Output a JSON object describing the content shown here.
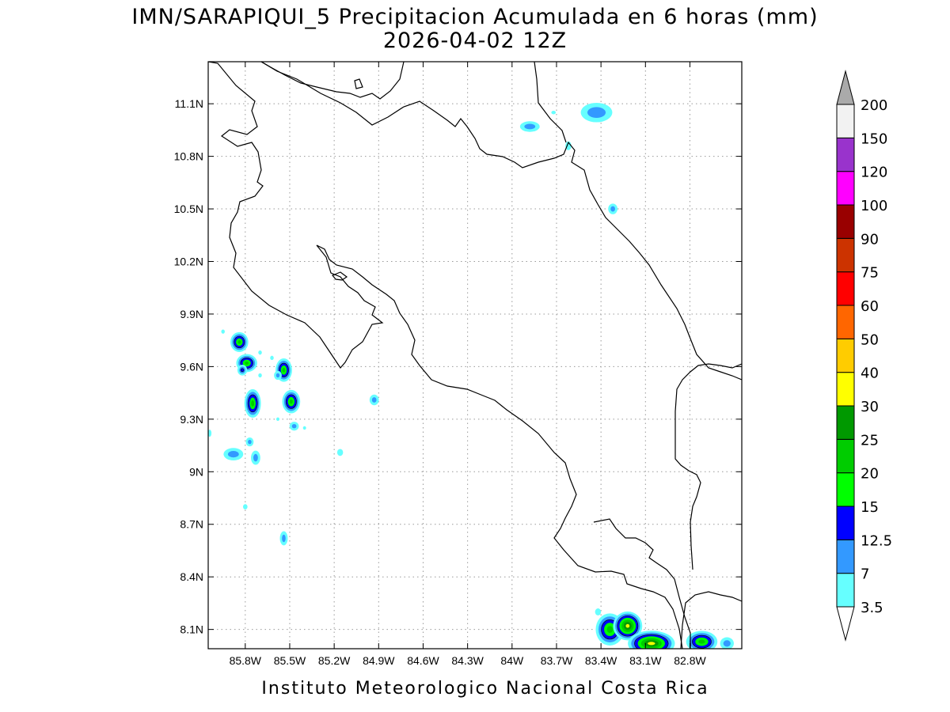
{
  "title": {
    "line1": "IMN/SARAPIQUI_5 Precipitacion Acumulada en 6 horas (mm)",
    "line2": "2026-04-02 12Z"
  },
  "credit": "Instituto Meteorologico Nacional Costa Rica",
  "map": {
    "lon_range": [
      -86.05,
      -82.45
    ],
    "lat_range": [
      7.99,
      11.34
    ],
    "x_ticks": [
      {
        "lon": -85.8,
        "label": "85.8W"
      },
      {
        "lon": -85.5,
        "label": "85.5W"
      },
      {
        "lon": -85.2,
        "label": "85.2W"
      },
      {
        "lon": -84.9,
        "label": "84.9W"
      },
      {
        "lon": -84.6,
        "label": "84.6W"
      },
      {
        "lon": -84.3,
        "label": "84.3W"
      },
      {
        "lon": -84.0,
        "label": "84W"
      },
      {
        "lon": -83.7,
        "label": "83.7W"
      },
      {
        "lon": -83.4,
        "label": "83.4W"
      },
      {
        "lon": -83.1,
        "label": "83.1W"
      },
      {
        "lon": -82.8,
        "label": "82.8W"
      }
    ],
    "y_ticks": [
      {
        "lat": 8.1,
        "label": "8.1N"
      },
      {
        "lat": 8.4,
        "label": "8.4N"
      },
      {
        "lat": 8.7,
        "label": "8.7N"
      },
      {
        "lat": 9.0,
        "label": "9N"
      },
      {
        "lat": 9.3,
        "label": "9.3N"
      },
      {
        "lat": 9.6,
        "label": "9.6N"
      },
      {
        "lat": 9.9,
        "label": "9.9N"
      },
      {
        "lat": 10.2,
        "label": "10.2N"
      },
      {
        "lat": 10.5,
        "label": "10.5N"
      },
      {
        "lat": 10.8,
        "label": "10.8N"
      },
      {
        "lat": 11.1,
        "label": "11.1N"
      }
    ],
    "grid": true,
    "coast_color": "#000000"
  },
  "colorbar": {
    "levels": [
      "3.5",
      "7",
      "12.5",
      "15",
      "20",
      "25",
      "30",
      "40",
      "50",
      "60",
      "75",
      "90",
      "100",
      "120",
      "150",
      "200"
    ],
    "colors": [
      "#ffffff",
      "#66ffff",
      "#3399ff",
      "#0000ff",
      "#00ff00",
      "#00cc00",
      "#009900",
      "#ffff00",
      "#ffcc00",
      "#ff6600",
      "#ff0000",
      "#cc3300",
      "#990000",
      "#ff00ff",
      "#9933cc",
      "#f2f2f2",
      "#aaaaaa"
    ]
  },
  "precip_cells": [
    {
      "lon": -85.84,
      "lat": 9.74,
      "rx": 0.035,
      "ry": 0.035,
      "level": 5
    },
    {
      "lon": -85.79,
      "lat": 9.62,
      "rx": 0.045,
      "ry": 0.03,
      "level": 5
    },
    {
      "lon": -85.82,
      "lat": 9.58,
      "rx": 0.02,
      "ry": 0.02,
      "level": 3
    },
    {
      "lon": -85.75,
      "lat": 9.39,
      "rx": 0.03,
      "ry": 0.06,
      "level": 5
    },
    {
      "lon": -85.54,
      "lat": 9.58,
      "rx": 0.03,
      "ry": 0.045,
      "level": 5
    },
    {
      "lon": -85.49,
      "lat": 9.4,
      "rx": 0.035,
      "ry": 0.045,
      "level": 5
    },
    {
      "lon": -85.58,
      "lat": 9.55,
      "rx": 0.02,
      "ry": 0.02,
      "level": 2
    },
    {
      "lon": -85.47,
      "lat": 9.26,
      "rx": 0.025,
      "ry": 0.02,
      "level": 2
    },
    {
      "lon": -85.88,
      "lat": 9.1,
      "rx": 0.06,
      "ry": 0.03,
      "level": 2
    },
    {
      "lon": -85.77,
      "lat": 9.17,
      "rx": 0.02,
      "ry": 0.02,
      "level": 2
    },
    {
      "lon": -85.73,
      "lat": 9.08,
      "rx": 0.025,
      "ry": 0.035,
      "level": 2
    },
    {
      "lon": -85.54,
      "lat": 8.62,
      "rx": 0.02,
      "ry": 0.035,
      "level": 2
    },
    {
      "lon": -84.93,
      "lat": 9.41,
      "rx": 0.025,
      "ry": 0.025,
      "level": 2
    },
    {
      "lon": -85.16,
      "lat": 9.11,
      "rx": 0.02,
      "ry": 0.02,
      "level": 1
    },
    {
      "lon": -85.8,
      "lat": 8.8,
      "rx": 0.015,
      "ry": 0.015,
      "level": 1
    },
    {
      "lon": -85.7,
      "lat": 9.55,
      "rx": 0.012,
      "ry": 0.012,
      "level": 1
    },
    {
      "lon": -85.62,
      "lat": 9.65,
      "rx": 0.012,
      "ry": 0.012,
      "level": 1
    },
    {
      "lon": -85.7,
      "lat": 9.68,
      "rx": 0.012,
      "ry": 0.012,
      "level": 1
    },
    {
      "lon": -85.95,
      "lat": 9.8,
      "rx": 0.012,
      "ry": 0.012,
      "level": 1
    },
    {
      "lon": -86.04,
      "lat": 9.22,
      "rx": 0.012,
      "ry": 0.02,
      "level": 1
    },
    {
      "lon": -85.4,
      "lat": 9.25,
      "rx": 0.01,
      "ry": 0.01,
      "level": 1
    },
    {
      "lon": -85.58,
      "lat": 9.3,
      "rx": 0.01,
      "ry": 0.01,
      "level": 1
    },
    {
      "lon": -83.88,
      "lat": 10.97,
      "rx": 0.06,
      "ry": 0.025,
      "level": 2
    },
    {
      "lon": -83.43,
      "lat": 11.05,
      "rx": 0.1,
      "ry": 0.05,
      "level": 2
    },
    {
      "lon": -83.62,
      "lat": 10.86,
      "rx": 0.02,
      "ry": 0.025,
      "level": 1
    },
    {
      "lon": -83.32,
      "lat": 10.5,
      "rx": 0.025,
      "ry": 0.025,
      "level": 2
    },
    {
      "lon": -83.72,
      "lat": 11.05,
      "rx": 0.015,
      "ry": 0.01,
      "level": 1
    },
    {
      "lon": -83.34,
      "lat": 8.1,
      "rx": 0.07,
      "ry": 0.07,
      "level": 5
    },
    {
      "lon": -83.22,
      "lat": 8.12,
      "rx": 0.06,
      "ry": 0.05,
      "level": 7
    },
    {
      "lon": -83.06,
      "lat": 8.02,
      "rx": 0.12,
      "ry": 0.04,
      "level": 7
    },
    {
      "lon": -82.72,
      "lat": 8.03,
      "rx": 0.08,
      "ry": 0.04,
      "level": 5
    },
    {
      "lon": -83.42,
      "lat": 8.2,
      "rx": 0.02,
      "ry": 0.02,
      "level": 1
    },
    {
      "lon": -82.55,
      "lat": 8.02,
      "rx": 0.04,
      "ry": 0.03,
      "level": 2
    }
  ]
}
